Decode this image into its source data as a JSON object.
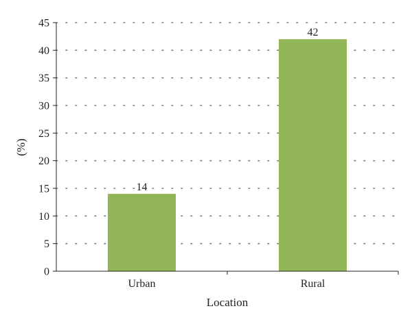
{
  "chart_data": {
    "type": "bar",
    "categories": [
      "Urban",
      "Rural"
    ],
    "values": [
      14,
      42
    ],
    "title": "",
    "xlabel": "Location",
    "ylabel": "(%)",
    "ylim": [
      0,
      45
    ],
    "yticks": [
      0,
      5,
      10,
      15,
      20,
      25,
      30,
      35,
      40,
      45
    ],
    "data_labels": [
      "14",
      "42"
    ],
    "grid": "horizontal dotted",
    "legend": "none",
    "colors": {
      "bar": "#92b558",
      "grid": "#777777",
      "axis": "#231f20",
      "text": "#231f20"
    }
  }
}
